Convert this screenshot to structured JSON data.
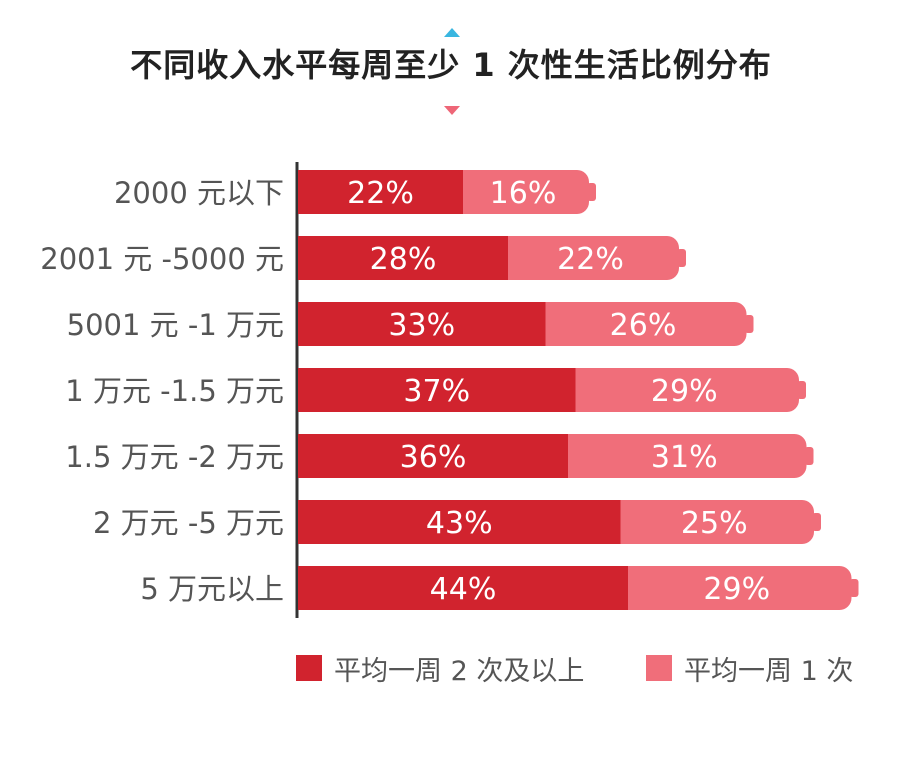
{
  "chart_data": {
    "type": "bar",
    "orientation": "horizontal",
    "stacked": true,
    "title": "不同收入水平每周至少 1 次性生活比例分布",
    "categories": [
      "2000 元以下",
      "2001 元 -5000 元",
      "5001 元 -1 万元",
      "1 万元 -1.5 万元",
      "1.5 万元 -2 万元",
      "2 万元 -5 万元",
      "5 万元以上"
    ],
    "series": [
      {
        "name": "平均一周 2 次及以上",
        "values": [
          22,
          28,
          33,
          37,
          36,
          43,
          44
        ],
        "color": "#d1232e"
      },
      {
        "name": "平均一周 1 次",
        "values": [
          16,
          22,
          26,
          29,
          31,
          25,
          29
        ],
        "color": "#f06e7a"
      }
    ],
    "value_format": "{v}%",
    "xlim": [
      0,
      73
    ],
    "grid": false,
    "legend": "bottom"
  },
  "colors": {
    "title_marker_top": "#39b6e0",
    "title_marker_bottom": "#ee6677",
    "axis_line": "#333333",
    "label_text": "#555555"
  }
}
